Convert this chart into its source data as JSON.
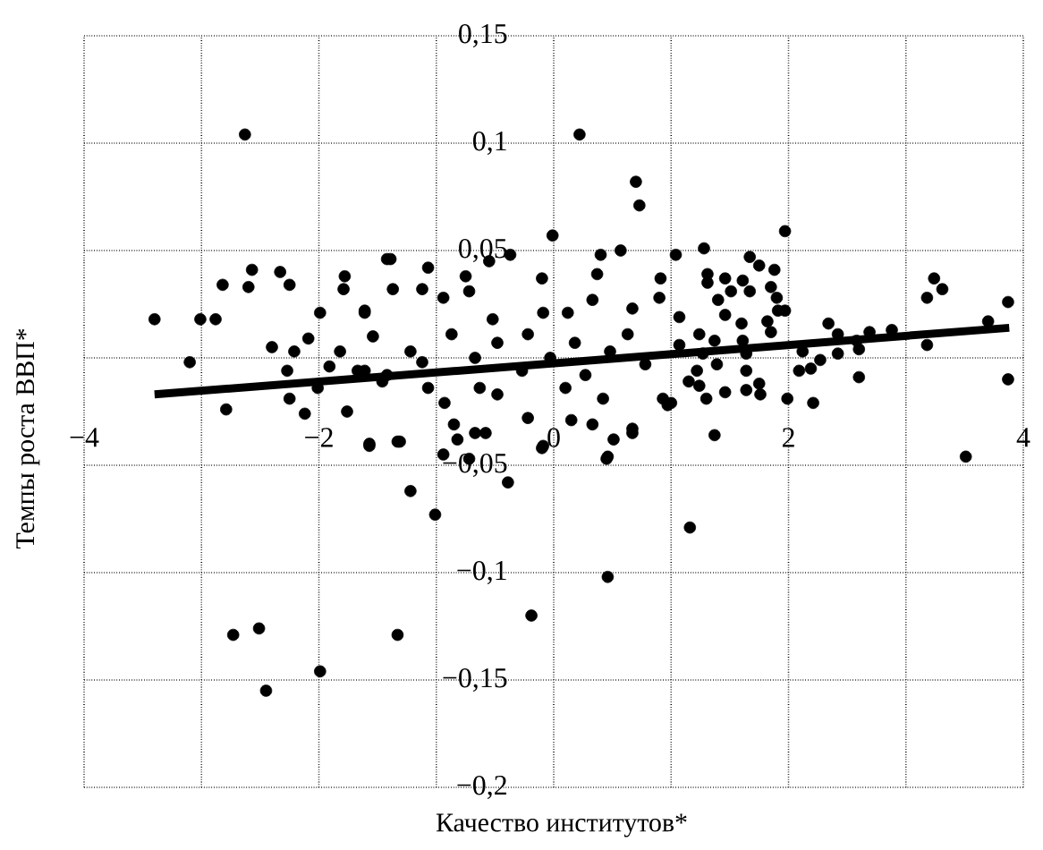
{
  "chart_data": {
    "type": "scatter",
    "xlabel": "Качество институтов*",
    "ylabel": "Темпы роста ВВП*",
    "xlim": [
      -4,
      4
    ],
    "ylim": [
      -0.2,
      0.15
    ],
    "xticks": [
      {
        "value": -4,
        "label": "−4"
      },
      {
        "value": -3,
        "label": null
      },
      {
        "value": -2,
        "label": "−2"
      },
      {
        "value": -1,
        "label": null
      },
      {
        "value": 0,
        "label": "0"
      },
      {
        "value": 1,
        "label": null
      },
      {
        "value": 2,
        "label": "2"
      },
      {
        "value": 3,
        "label": null
      },
      {
        "value": 4,
        "label": "4"
      }
    ],
    "yticks": [
      {
        "value": -0.2,
        "label": "−0,2"
      },
      {
        "value": -0.15,
        "label": "−0,15"
      },
      {
        "value": -0.1,
        "label": "−0,1"
      },
      {
        "value": -0.05,
        "label": "−0,05"
      },
      {
        "value": 0,
        "label": null
      },
      {
        "value": 0.05,
        "label": "0,05"
      },
      {
        "value": 0.1,
        "label": "0,1"
      },
      {
        "value": 0.15,
        "label": "0,15"
      }
    ],
    "grid": true,
    "marker": "circle",
    "series": [
      {
        "color": "#000000",
        "x": [
          -2.63,
          -2.57,
          -2.33,
          -2.82,
          -2.6,
          -2.25,
          -3.4,
          -3.01,
          -2.88,
          -3.1,
          -2.79,
          -1.78,
          -1.79,
          -1.99,
          -2.4,
          -2.09,
          -2.21,
          -2.27,
          -2.25,
          -2.12,
          -1.76,
          -1.57,
          -1.42,
          -1.61,
          -1.54,
          -1.82,
          -1.91,
          -2.01,
          -1.67,
          -1.46,
          0.22,
          0.7,
          0.73,
          -0.01,
          -0.37,
          -0.55,
          -1.39,
          -0.75,
          -0.72,
          -1.07,
          -1.37,
          -0.1,
          0.4,
          0.57,
          1.04,
          0.37,
          0.91,
          -0.09,
          -1.61,
          -1.12,
          -0.52,
          -0.94,
          0.67,
          0.9,
          0.33,
          0.12,
          -1.22,
          -0.87,
          -0.67,
          -0.48,
          -0.22,
          -0.27,
          -0.03,
          0.18,
          0.27,
          0.48,
          0.63,
          0.78,
          1.07,
          1.22,
          -1.42,
          -1.07,
          -0.93,
          -0.48,
          -0.22,
          0.1,
          0.42,
          0.67,
          0.93,
          0.97,
          -1.61,
          -1.31,
          -1.57,
          -0.85,
          -0.82,
          -0.67,
          -0.58,
          -0.94,
          -0.1,
          0.15,
          0.33,
          0.46,
          -1.12,
          -0.63,
          1.97,
          1.28,
          1.67,
          1.75,
          1.88,
          1.31,
          1.46,
          1.61,
          1.31,
          1.85,
          1.51,
          1.67,
          1.4,
          1.9,
          1.91,
          1.97,
          1.46,
          1.82,
          1.6,
          1.85,
          1.24,
          1.07,
          1.37,
          1.61,
          2.34,
          2.42,
          2.69,
          2.88,
          2.58,
          2.6,
          2.42,
          2.12,
          2.27,
          2.19,
          2.09,
          2.6,
          3.18,
          3.18,
          3.24,
          3.31,
          3.7,
          3.87,
          3.87,
          3.51,
          1.99,
          2.21,
          1.37,
          1.46,
          1.64,
          1.76,
          1.75,
          1.64,
          1.3,
          1.15,
          1.24,
          1.39,
          1.0,
          1.64,
          1.27,
          -1.22,
          -1.01,
          -0.39,
          -2.73,
          -2.51,
          -2.45,
          -1.99,
          -1.33,
          -0.19,
          -0.72,
          1.16,
          0.46,
          0.51,
          0.45,
          -0.09,
          0.67,
          -1.33
        ],
        "values": [
          0.104,
          0.041,
          0.04,
          0.034,
          0.033,
          0.034,
          0.018,
          0.018,
          0.018,
          -0.002,
          -0.024,
          0.038,
          0.032,
          0.021,
          0.005,
          0.009,
          0.003,
          -0.006,
          -0.019,
          -0.026,
          -0.025,
          -0.04,
          0.046,
          0.021,
          0.01,
          0.003,
          -0.004,
          -0.014,
          -0.006,
          -0.011,
          0.104,
          0.082,
          0.071,
          0.057,
          0.048,
          0.045,
          0.046,
          0.038,
          0.031,
          0.042,
          0.032,
          0.037,
          0.048,
          0.05,
          0.048,
          0.039,
          0.037,
          0.021,
          0.022,
          0.032,
          0.018,
          0.028,
          0.023,
          0.028,
          0.027,
          0.021,
          0.003,
          0.011,
          0.0,
          0.007,
          0.011,
          -0.006,
          0.0,
          0.007,
          -0.008,
          0.003,
          0.011,
          -0.003,
          0.006,
          -0.006,
          -0.008,
          -0.014,
          -0.021,
          -0.017,
          -0.028,
          -0.014,
          -0.019,
          -0.033,
          -0.019,
          -0.022,
          -0.006,
          -0.039,
          -0.041,
          -0.031,
          -0.038,
          -0.035,
          -0.035,
          -0.045,
          -0.042,
          -0.029,
          -0.031,
          -0.046,
          -0.002,
          -0.014,
          0.059,
          0.051,
          0.047,
          0.043,
          0.041,
          0.039,
          0.037,
          0.036,
          0.035,
          0.033,
          0.031,
          0.031,
          0.027,
          0.028,
          0.022,
          0.022,
          0.02,
          0.017,
          0.016,
          0.012,
          0.011,
          0.019,
          0.008,
          0.008,
          0.016,
          0.011,
          0.012,
          0.013,
          0.008,
          0.004,
          0.002,
          0.003,
          -0.001,
          -0.005,
          -0.006,
          -0.009,
          0.006,
          0.028,
          0.037,
          0.032,
          0.017,
          0.026,
          -0.01,
          -0.046,
          -0.019,
          -0.021,
          -0.036,
          -0.016,
          -0.015,
          -0.017,
          -0.012,
          -0.006,
          -0.019,
          -0.011,
          -0.013,
          -0.003,
          -0.021,
          0.002,
          0.002,
          -0.062,
          -0.073,
          -0.058,
          -0.129,
          -0.126,
          -0.155,
          -0.146,
          -0.129,
          -0.12,
          -0.047,
          -0.079,
          -0.102,
          -0.038,
          -0.047,
          -0.041,
          -0.035,
          -0.039
        ]
      },
      {
        "type": "line",
        "marker": "none",
        "color": "#000000",
        "x": [
          -3.4,
          3.88
        ],
        "values": [
          -0.017,
          0.014
        ]
      }
    ]
  }
}
